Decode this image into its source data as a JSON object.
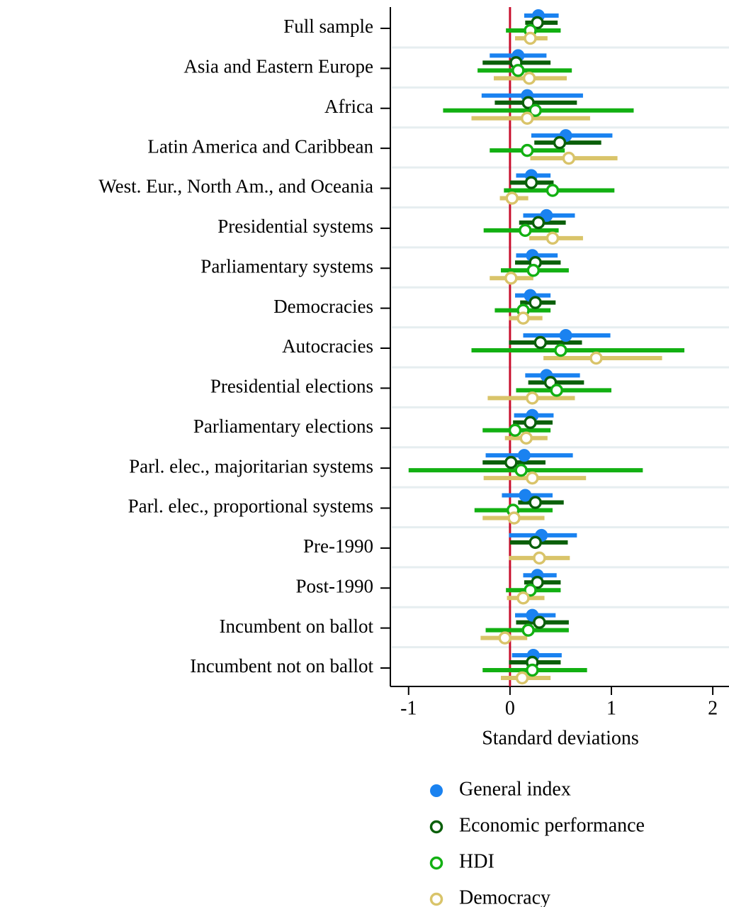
{
  "chart_data": {
    "type": "coefplot",
    "xlabel": "Standard deviations",
    "categories": [
      "Full sample",
      "Asia and Eastern Europe",
      "Africa",
      "Latin America and Caribbean",
      "West. Eur., North Am., and Oceania",
      "Presidential systems",
      "Parliamentary systems",
      "Democracies",
      "Autocracies",
      "Presidential elections",
      "Parliamentary elections",
      "Parl. elec., majoritarian systems",
      "Parl. elec., proportional systems",
      "Pre-1990",
      "Post-1990",
      "Incumbent on ballot",
      "Incumbent not on ballot"
    ],
    "xlim": [
      -1.18,
      2.16
    ],
    "xticks": [
      -1,
      0,
      1,
      2
    ],
    "reference_line": 0,
    "reference_color": "#c8102e",
    "series": [
      {
        "name": "General index",
        "color": "#1a82f0",
        "marker": "filled",
        "values": [
          0.28,
          0.08,
          0.17,
          0.55,
          0.21,
          0.36,
          0.22,
          0.2,
          0.55,
          0.36,
          0.22,
          0.14,
          0.15,
          0.31,
          0.27,
          0.22,
          0.23
        ],
        "lower": [
          0.14,
          -0.2,
          -0.28,
          0.21,
          0.06,
          0.13,
          0.06,
          0.05,
          0.13,
          0.15,
          0.04,
          -0.24,
          -0.08,
          -0.01,
          0.13,
          0.05,
          0.02
        ],
        "upper": [
          0.48,
          0.36,
          0.72,
          1.01,
          0.4,
          0.64,
          0.47,
          0.4,
          0.99,
          0.69,
          0.43,
          0.62,
          0.42,
          0.66,
          0.46,
          0.45,
          0.51
        ]
      },
      {
        "name": "Economic performance",
        "color": "#0a5f0a",
        "marker": "hollow",
        "values": [
          0.27,
          0.06,
          0.18,
          0.49,
          0.21,
          0.28,
          0.25,
          0.25,
          0.3,
          0.4,
          0.2,
          0.01,
          0.25,
          0.25,
          0.27,
          0.29,
          0.22
        ],
        "lower": [
          0.15,
          -0.27,
          -0.15,
          0.24,
          0,
          0.09,
          0.05,
          0.1,
          -0.01,
          0.18,
          0.03,
          -0.27,
          0.08,
          0,
          0.14,
          0.06,
          -0.01
        ],
        "upper": [
          0.47,
          0.4,
          0.66,
          0.9,
          0.43,
          0.55,
          0.5,
          0.45,
          0.71,
          0.73,
          0.42,
          0.35,
          0.53,
          0.57,
          0.5,
          0.58,
          0.5
        ]
      },
      {
        "name": "HDI",
        "color": "#12b012",
        "marker": "hollow",
        "values": [
          0.2,
          0.08,
          0.25,
          0.17,
          0.42,
          0.15,
          0.23,
          0.13,
          0.5,
          0.46,
          0.05,
          0.11,
          0.03,
          null,
          0.2,
          0.18,
          0.22
        ],
        "lower": [
          -0.04,
          -0.32,
          -0.66,
          -0.2,
          -0.06,
          -0.26,
          -0.09,
          -0.15,
          -0.38,
          0.06,
          -0.27,
          -1.0,
          -0.35,
          null,
          -0.04,
          -0.24,
          -0.27
        ],
        "upper": [
          0.5,
          0.61,
          1.22,
          0.54,
          1.03,
          0.48,
          0.58,
          0.4,
          1.72,
          1.0,
          0.4,
          1.31,
          0.42,
          null,
          0.5,
          0.58,
          0.76
        ]
      },
      {
        "name": "Democracy",
        "color": "#d9c46a",
        "marker": "hollow",
        "values": [
          0.2,
          0.19,
          0.17,
          0.58,
          0.02,
          0.42,
          0.01,
          0.13,
          0.85,
          0.22,
          0.16,
          0.22,
          0.04,
          0.29,
          0.13,
          -0.05,
          0.12
        ],
        "lower": [
          0.05,
          -0.16,
          -0.38,
          0.2,
          -0.1,
          0.19,
          -0.2,
          -0.01,
          0.33,
          -0.22,
          -0.05,
          -0.26,
          -0.27,
          -0.01,
          -0.03,
          -0.29,
          -0.09
        ],
        "upper": [
          0.37,
          0.56,
          0.79,
          1.06,
          0.18,
          0.72,
          0.23,
          0.32,
          1.5,
          0.64,
          0.37,
          0.75,
          0.34,
          0.59,
          0.34,
          0.17,
          0.4
        ]
      }
    ]
  }
}
